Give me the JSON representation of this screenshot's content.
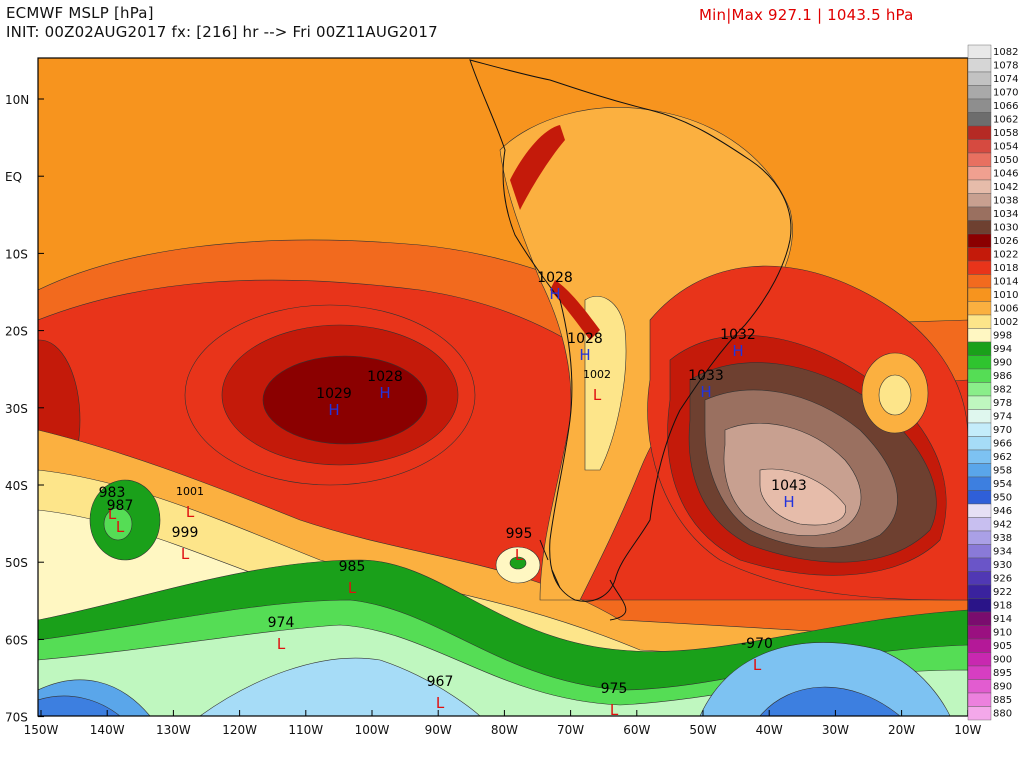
{
  "header": {
    "title": "ECMWF MSLP [hPa]",
    "init_line": "INIT: 00Z02AUG2017 fx: [216] hr --> Fri 00Z11AUG2017",
    "minmax": "Min|Max 927.1 | 1043.5 hPa"
  },
  "axes": {
    "lat_labels": [
      "10N",
      "EQ",
      "10S",
      "20S",
      "30S",
      "40S",
      "50S",
      "60S",
      "70S"
    ],
    "lon_labels": [
      "150W",
      "140W",
      "130W",
      "120W",
      "110W",
      "100W",
      "90W",
      "80W",
      "70W",
      "60W",
      "50W",
      "40W",
      "30W",
      "20W",
      "10W"
    ]
  },
  "legend": {
    "levels": [
      "1082",
      "1078",
      "1074",
      "1070",
      "1066",
      "1062",
      "1058",
      "1054",
      "1050",
      "1046",
      "1042",
      "1038",
      "1034",
      "1030",
      "1026",
      "1022",
      "1018",
      "1014",
      "1010",
      "1006",
      "1002",
      "998",
      "994",
      "990",
      "986",
      "982",
      "978",
      "974",
      "970",
      "966",
      "962",
      "958",
      "954",
      "950",
      "946",
      "942",
      "938",
      "934",
      "930",
      "926",
      "922",
      "918",
      "914",
      "910",
      "905",
      "900",
      "895",
      "890",
      "885",
      "880"
    ],
    "colors": [
      "#e8e8e8",
      "#d6d6d6",
      "#c2c2c2",
      "#a9a9a9",
      "#8e8e8e",
      "#6d6d6d",
      "#b52a24",
      "#d64a40",
      "#e87060",
      "#f0a090",
      "#e6bcaa",
      "#c8a090",
      "#9a7060",
      "#6e4030",
      "#8b0000",
      "#c41a0a",
      "#e8341a",
      "#f26a1e",
      "#f7941e",
      "#fbb040",
      "#fde58a",
      "#fff7c2",
      "#1aa01a",
      "#2fc42f",
      "#55dd55",
      "#8aee8a",
      "#bff7bf",
      "#dff7ee",
      "#c4ecfa",
      "#a6dcf7",
      "#7dc2f2",
      "#5aa6ea",
      "#3d7fe0",
      "#2f5fd8",
      "#e6e0f5",
      "#c8bff0",
      "#aaa0e6",
      "#8a7ad8",
      "#6a55c8",
      "#5038b4",
      "#3a229e",
      "#2a1488",
      "#7a0c6e",
      "#9a1080",
      "#b41898",
      "#c828b0",
      "#d63ec2",
      "#e25cd0",
      "#ec80de",
      "#f4a8ea"
    ]
  },
  "highs": [
    {
      "value": "1029"
    },
    {
      "value": "1028"
    },
    {
      "value": "1028"
    },
    {
      "value": "1028"
    },
    {
      "value": "1032"
    },
    {
      "value": "1033"
    },
    {
      "value": "1043"
    }
  ],
  "lows": [
    {
      "value": "983"
    },
    {
      "value": "987"
    },
    {
      "value": "1001"
    },
    {
      "value": "999"
    },
    {
      "value": "1002"
    },
    {
      "value": "995"
    },
    {
      "value": "985"
    },
    {
      "value": "974"
    },
    {
      "value": "967"
    },
    {
      "value": "975"
    },
    {
      "value": "-970"
    }
  ],
  "markers": {
    "high": "H",
    "low": "L"
  }
}
